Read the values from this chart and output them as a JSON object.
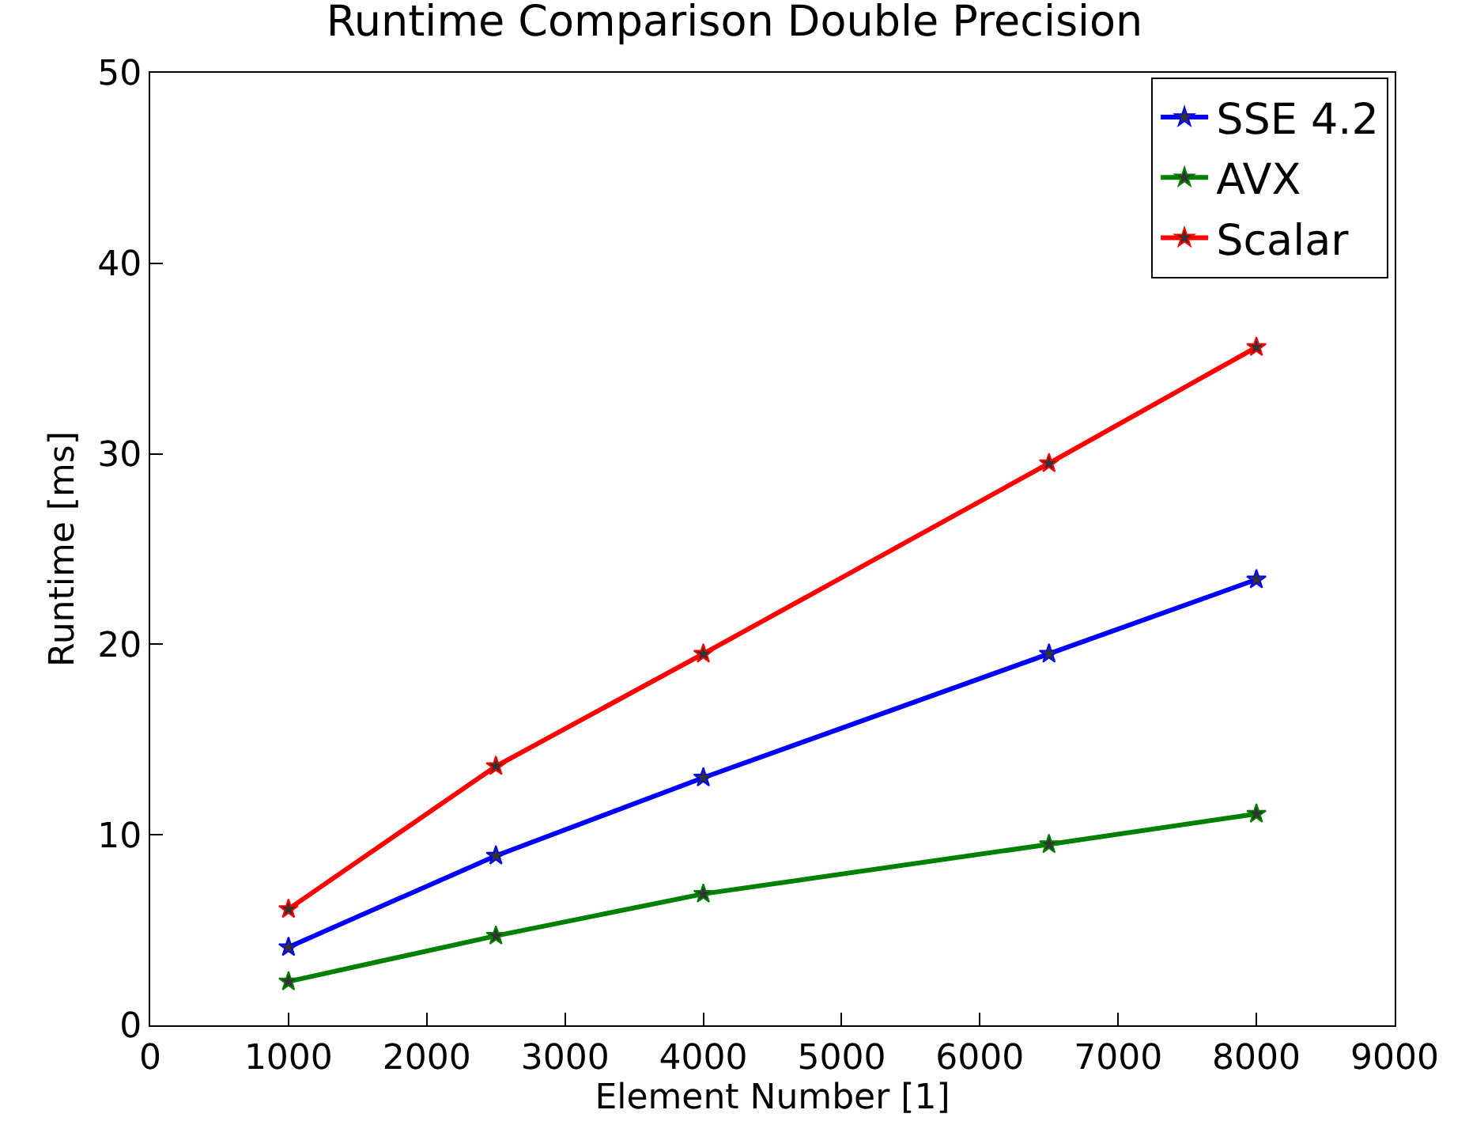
{
  "chart_data": {
    "type": "line",
    "title": "Runtime Comparison Double Precision",
    "xlabel": "Element Number [1]",
    "ylabel": "Runtime [ms]",
    "x": [
      1000,
      2500,
      4000,
      6500,
      8000
    ],
    "series": [
      {
        "name": "SSE 4.2",
        "color": "#0000ff",
        "values": [
          4.1,
          8.9,
          13.0,
          19.5,
          23.4
        ]
      },
      {
        "name": "AVX",
        "color": "#008000",
        "values": [
          2.3,
          4.7,
          6.9,
          9.5,
          11.1
        ]
      },
      {
        "name": "Scalar",
        "color": "#ff0000",
        "values": [
          6.1,
          13.6,
          19.5,
          29.5,
          35.6
        ]
      }
    ],
    "xlim": [
      0,
      9000
    ],
    "xticks": [
      0,
      1000,
      2000,
      3000,
      4000,
      5000,
      6000,
      7000,
      8000,
      9000
    ],
    "ylim": [
      0,
      50
    ],
    "yticks": [
      0,
      10,
      20,
      30,
      40,
      50
    ],
    "legend": "top right",
    "marker": "star",
    "line_style": "solid"
  }
}
